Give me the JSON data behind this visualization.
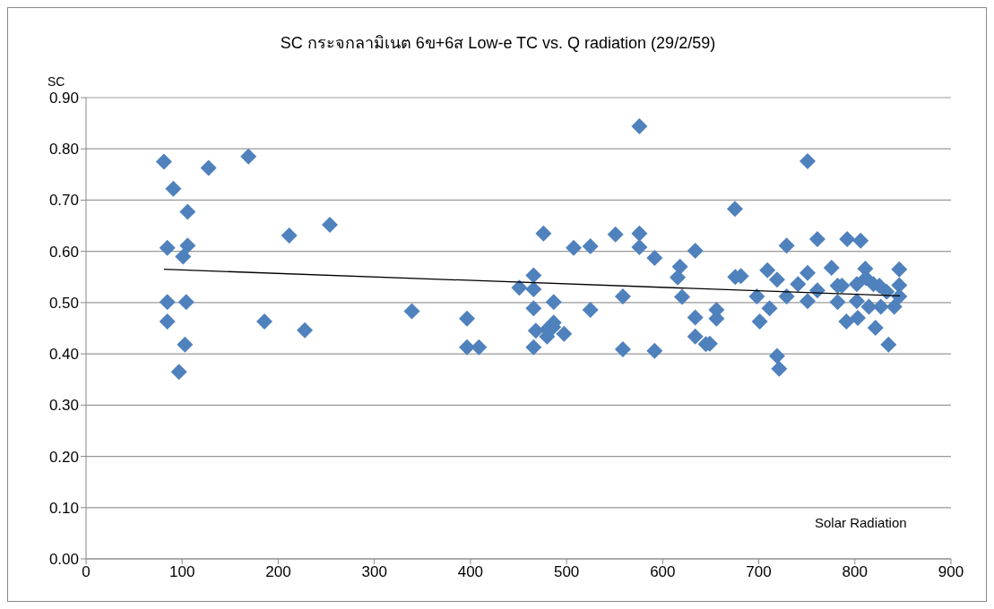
{
  "chart_data": {
    "type": "scatter",
    "title": "SC กระจกลามิเนต 6ข+6ส Low-e TC  vs. Q radiation (29/2/59)",
    "xlabel": "Solar Radiation",
    "ylabel": "SC",
    "xlim": [
      0,
      900
    ],
    "xticks": [
      0,
      100,
      200,
      300,
      400,
      500,
      600,
      700,
      800,
      900
    ],
    "ylim": [
      0,
      0.9
    ],
    "yticks": [
      {
        "value": 0,
        "label": "0.00"
      },
      {
        "value": 0.1,
        "label": "0.10"
      },
      {
        "value": 0.2,
        "label": "0.20"
      },
      {
        "value": 0.3,
        "label": "0.30"
      },
      {
        "value": 0.4,
        "label": "0.40"
      },
      {
        "value": 0.5,
        "label": "0.50"
      },
      {
        "value": 0.6,
        "label": "0.60"
      },
      {
        "value": 0.7,
        "label": "0.70"
      },
      {
        "value": 0.8,
        "label": "0.80"
      },
      {
        "value": 0.9,
        "label": "0.90"
      }
    ],
    "grid": "y",
    "series": [
      {
        "color": "#4f81bd",
        "marker": "diamond",
        "x": [
          81,
          127.5,
          169,
          90.8,
          105.7,
          211.4,
          253.7,
          84.6,
          105.7,
          101,
          84.6,
          104.2,
          84.6,
          185.6,
          227.6,
          102.9,
          96.7,
          339,
          396.4,
          396.4,
          408.8,
          476,
          450.8,
          465.7,
          465.7,
          465.7,
          465.7,
          468,
          479.7,
          486.6,
          479.7,
          486.6,
          497.4,
          486,
          507.4,
          524.8,
          524.8,
          550.9,
          575.8,
          575.8,
          575.8,
          558.6,
          558.6,
          591.6,
          591.6,
          618,
          615.6,
          620.2,
          633.9,
          633.9,
          633.9,
          645,
          656,
          656,
          649,
          675.2,
          675.5,
          681.4,
          698,
          711.2,
          701,
          709,
          719,
          719,
          721.2,
          729,
          729,
          740.8,
          750.8,
          750.8,
          750.8,
          761,
          761,
          775.7,
          782,
          782,
          786.5,
          792,
          791.2,
          802,
          802,
          803,
          806,
          810.8,
          811.5,
          814.6,
          819.3,
          825.5,
          827,
          821.4,
          835,
          841,
          846.2,
          846.2,
          846.2,
          833
        ],
        "values": [
          0.775,
          0.763,
          0.785,
          0.722,
          0.677,
          0.631,
          0.652,
          0.607,
          0.611,
          0.59,
          0.501,
          0.501,
          0.463,
          0.463,
          0.446,
          0.418,
          0.365,
          0.483,
          0.469,
          0.413,
          0.413,
          0.635,
          0.529,
          0.553,
          0.526,
          0.489,
          0.413,
          0.445,
          0.448,
          0.461,
          0.434,
          0.501,
          0.439,
          0.452,
          0.607,
          0.61,
          0.486,
          0.633,
          0.635,
          0.608,
          0.844,
          0.512,
          0.409,
          0.587,
          0.406,
          0.57,
          0.549,
          0.511,
          0.601,
          0.471,
          0.434,
          0.419,
          0.486,
          0.469,
          0.42,
          0.683,
          0.55,
          0.552,
          0.512,
          0.489,
          0.463,
          0.563,
          0.545,
          0.396,
          0.371,
          0.611,
          0.512,
          0.536,
          0.558,
          0.503,
          0.776,
          0.624,
          0.524,
          0.568,
          0.533,
          0.501,
          0.533,
          0.624,
          0.463,
          0.536,
          0.503,
          0.47,
          0.621,
          0.566,
          0.548,
          0.492,
          0.536,
          0.533,
          0.492,
          0.451,
          0.418,
          0.492,
          0.565,
          0.534,
          0.512,
          0.521
        ]
      },
      {
        "type": "line",
        "color": "#000000",
        "marker": "none",
        "line_style": "solid",
        "x": [
          81,
          847
        ],
        "values": [
          0.565,
          0.513
        ]
      }
    ]
  }
}
